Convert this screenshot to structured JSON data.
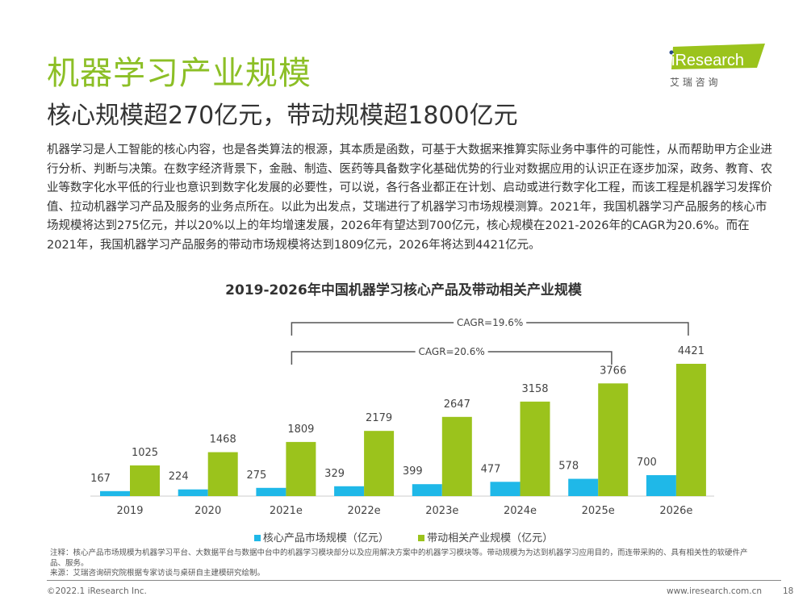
{
  "header": {
    "title": "机器学习产业规模",
    "subtitle": "核心规模超270亿元，带动规模超1800亿元"
  },
  "logo": {
    "brand": "iResearch",
    "cn": "艾 瑞 咨 询",
    "color": "#9bc31c"
  },
  "body_text": "机器学习是人工智能的核心内容，也是各类算法的根源，其本质是函数，可基于大数据来推算实际业务中事件的可能性，从而帮助甲方企业进行分析、判断与决策。在数字经济背景下，金融、制造、医药等具备数字化基础优势的行业对数据应用的认识正在逐步加深，政务、教育、农业等数字化水平低的行业也意识到数字化发展的必要性，可以说，各行各业都正在计划、启动或进行数字化工程，而该工程是机器学习发挥价值、拉动机器学习产品及服务的业务点所在。以此为出发点，艾瑞进行了机器学习市场规模测算。2021年，我国机器学习产品服务的核心市场规模将达到275亿元，并以20%以上的年均增速发展，2026年有望达到700亿元，核心规模在2021-2026年的CAGR为20.6%。而在2021年，我国机器学习产品服务的带动市场规模将达到1809亿元，2026年将达到4421亿元。",
  "chart_data": {
    "type": "bar",
    "title": "2019-2026年中国机器学习核心产品及带动相关产业规模",
    "categories": [
      "2019",
      "2020",
      "2021e",
      "2022e",
      "2023e",
      "2024e",
      "2025e",
      "2026e"
    ],
    "series": [
      {
        "name": "核心产品市场规模（亿元）",
        "color": "#1fb8e8",
        "values": [
          167,
          224,
          275,
          329,
          399,
          477,
          578,
          700
        ]
      },
      {
        "name": "带动相关产业规模（亿元）",
        "color": "#9bc31c",
        "values": [
          1025,
          1468,
          1809,
          2179,
          2647,
          3158,
          3766,
          4421
        ]
      }
    ],
    "ylim": [
      0,
      4421
    ],
    "legend": "bottom",
    "grid": false,
    "annotations": [
      {
        "text": "CAGR=19.6%",
        "from": "2021e",
        "to": "2026e",
        "series": "带动相关产业规模（亿元）"
      },
      {
        "text": "CAGR=20.6%",
        "from": "2021e",
        "to": "2026e",
        "series": "核心产品市场规模（亿元）"
      }
    ]
  },
  "note": "注释：核心产品市场规模为机器学习平台、大数据平台与数据中台中的机器学习模块部分以及应用解决方案中的机器学习模块等。带动规模为为达到机器学习应用目的，而连带采购的、具有相关性的软硬件产品、服务。",
  "source": "来源：艾瑞咨询研究院根据专家访谈与桌研自主建模研究绘制。",
  "footer": {
    "copyright": "©2022.1 iResearch Inc.",
    "url": "www.iresearch.com.cn",
    "page": "18"
  }
}
